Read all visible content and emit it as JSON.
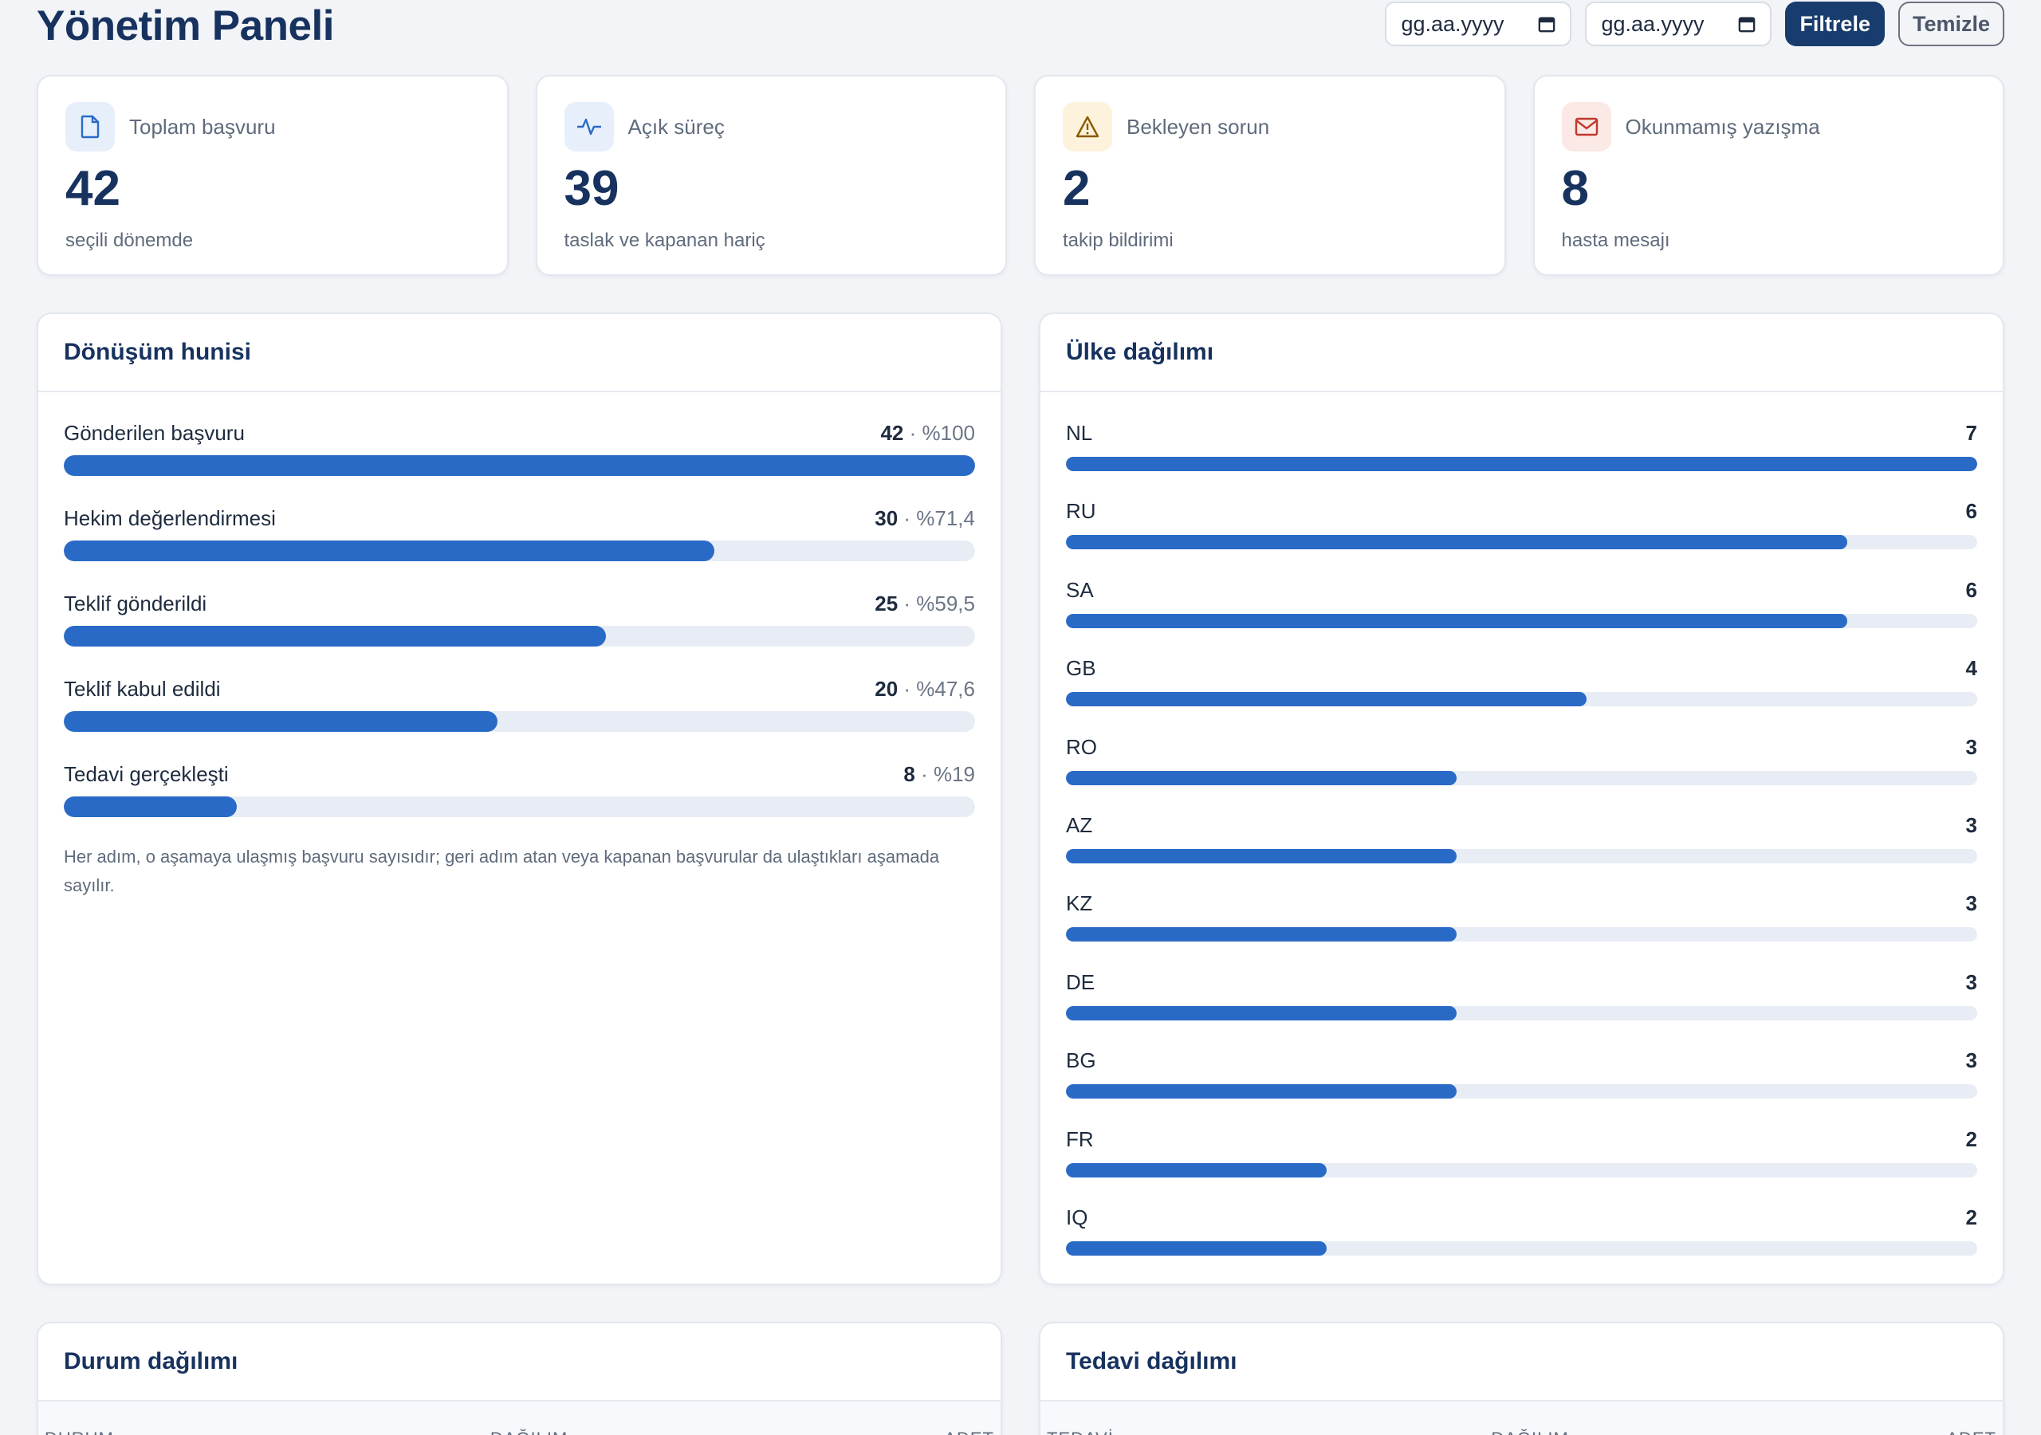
{
  "header": {
    "title": "Yönetim Paneli",
    "date_from_placeholder": "gg.aa.yyyy",
    "date_to_placeholder": "gg.aa.yyyy",
    "filter_label": "Filtrele",
    "clear_label": "Temizle"
  },
  "stats": [
    {
      "label": "Toplam başvuru",
      "value": "42",
      "sub": "seçili dönemde",
      "icon": "document-icon"
    },
    {
      "label": "Açık süreç",
      "value": "39",
      "sub": "taslak ve kapanan hariç",
      "icon": "activity-icon"
    },
    {
      "label": "Bekleyen sorun",
      "value": "2",
      "sub": "takip bildirimi",
      "icon": "warning-icon"
    },
    {
      "label": "Okunmamış yazışma",
      "value": "8",
      "sub": "hasta mesajı",
      "icon": "mail-icon"
    }
  ],
  "funnel": {
    "title": "Dönüşüm hunisi",
    "steps": [
      {
        "label": "Gönderilen başvuru",
        "count": "42",
        "pct": "%100",
        "fraction": 1.0
      },
      {
        "label": "Hekim değerlendirmesi",
        "count": "30",
        "pct": "%71,4",
        "fraction": 0.714
      },
      {
        "label": "Teklif gönderildi",
        "count": "25",
        "pct": "%59,5",
        "fraction": 0.595
      },
      {
        "label": "Teklif kabul edildi",
        "count": "20",
        "pct": "%47,6",
        "fraction": 0.476
      },
      {
        "label": "Tedavi gerçekleşti",
        "count": "8",
        "pct": "%19",
        "fraction": 0.19
      }
    ],
    "note": "Her adım, o aşamaya ulaşmış başvuru sayısıdır; geri adım atan veya kapanan başvurular da ulaştıkları aşamada sayılır."
  },
  "countries": {
    "title": "Ülke dağılımı",
    "max": 7,
    "items": [
      {
        "code": "NL",
        "count": 7
      },
      {
        "code": "RU",
        "count": 6
      },
      {
        "code": "SA",
        "count": 6
      },
      {
        "code": "GB",
        "count": 4
      },
      {
        "code": "RO",
        "count": 3
      },
      {
        "code": "AZ",
        "count": 3
      },
      {
        "code": "KZ",
        "count": 3
      },
      {
        "code": "DE",
        "count": 3
      },
      {
        "code": "BG",
        "count": 3
      },
      {
        "code": "FR",
        "count": 2
      },
      {
        "code": "IQ",
        "count": 2
      }
    ]
  },
  "status_dist": {
    "title": "Durum dağılımı",
    "columns": [
      "DURUM",
      "DAĞILIM",
      "ADET"
    ]
  },
  "treatment_dist": {
    "title": "Tedavi dağılımı",
    "columns": [
      "TEDAVİ",
      "DAĞILIM",
      "ADET"
    ]
  },
  "colors": {
    "accent": "#2a6ac7",
    "primary": "#183c6d",
    "track": "#e8edf5"
  },
  "separator": " · "
}
